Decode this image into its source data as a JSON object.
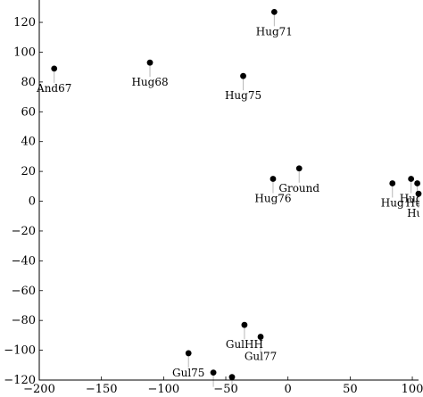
{
  "chart_data": {
    "type": "scatter",
    "title": "",
    "xlabel": "",
    "ylabel": "",
    "xlim": [
      -200,
      105
    ],
    "ylim": [
      -120,
      135
    ],
    "xticks": [
      -200,
      -150,
      -100,
      -50,
      0,
      50,
      100
    ],
    "yticks": [
      -120,
      -100,
      -80,
      -60,
      -40,
      -20,
      0,
      20,
      40,
      60,
      80,
      100,
      120
    ],
    "grid": false,
    "points": [
      {
        "label": "Hug71",
        "x": -11,
        "y": 127
      },
      {
        "label": "And67",
        "x": -188,
        "y": 89
      },
      {
        "label": "Hug68",
        "x": -111,
        "y": 93
      },
      {
        "label": "Hug75",
        "x": -36,
        "y": 84
      },
      {
        "label": "Ground",
        "x": 9,
        "y": 22
      },
      {
        "label": "Hug76",
        "x": -12,
        "y": 15
      },
      {
        "label": "Hug",
        "x": 84,
        "y": 12
      },
      {
        "label": "Hug",
        "x": 99,
        "y": 15
      },
      {
        "label": "Hug",
        "x": 104,
        "y": 12
      },
      {
        "label": "Hug",
        "x": 105,
        "y": 5
      },
      {
        "label": "GulHH",
        "x": -35,
        "y": -83
      },
      {
        "label": "Gul77",
        "x": -22,
        "y": -91
      },
      {
        "label": "Gul75",
        "x": -80,
        "y": -102
      },
      {
        "label": "",
        "x": -60,
        "y": -115
      },
      {
        "label": "",
        "x": -45,
        "y": -118
      }
    ]
  }
}
